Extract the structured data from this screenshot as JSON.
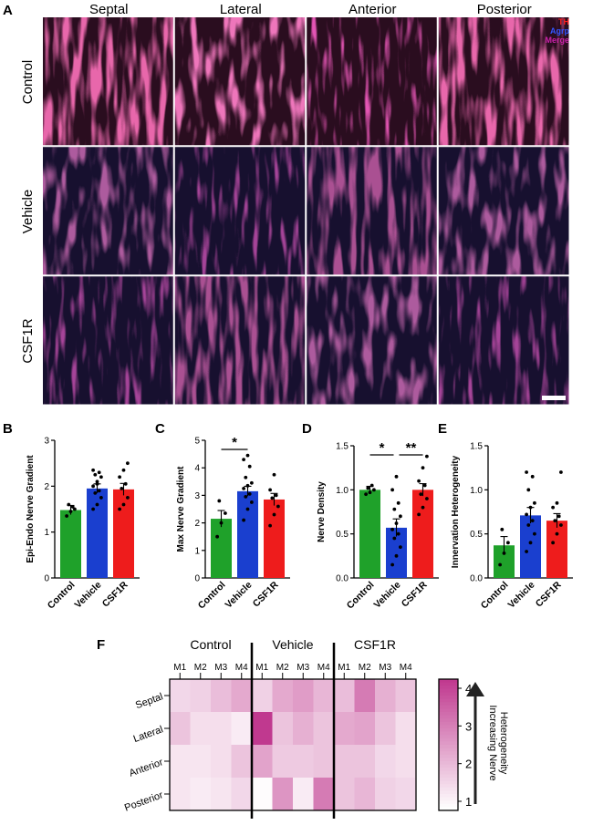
{
  "panel_letters": {
    "A": "A",
    "B": "B",
    "C": "C",
    "D": "D",
    "E": "E",
    "F": "F"
  },
  "panel_a": {
    "columns": [
      "Septal",
      "Lateral",
      "Anterior",
      "Posterior"
    ],
    "rows": [
      "Control",
      "Vehicle",
      "CSF1R"
    ],
    "legend": [
      "TH",
      "Agrp",
      "Merge"
    ],
    "legend_colors": [
      "#ff2020",
      "#3355ff",
      "#cc22aa"
    ]
  },
  "colors": {
    "Control": "#1fa12a",
    "Vehicle": "#1a3fcf",
    "CSF1R": "#ee1c1c",
    "heat_low": "#ffffff",
    "heat_high": "#c0398f"
  },
  "chart_data": [
    {
      "type": "bar",
      "panel": "B",
      "categories": [
        "Control",
        "Vehicle",
        "CSF1R"
      ],
      "values": [
        1.48,
        1.95,
        1.93
      ],
      "errors": [
        0.1,
        0.1,
        0.13
      ],
      "points": [
        [
          1.35,
          1.45,
          1.5,
          1.6,
          1.55
        ],
        [
          1.5,
          1.6,
          1.75,
          1.85,
          1.9,
          2.0,
          2.1,
          2.2,
          2.25,
          2.3,
          2.35,
          2.05
        ],
        [
          1.5,
          1.6,
          1.75,
          1.95,
          2.05,
          2.2,
          2.35,
          2.5
        ]
      ],
      "ylabel": "Epi-Endo Nerve Gradient",
      "ylim": [
        0,
        3
      ],
      "yticks": [
        0,
        1,
        2,
        3
      ],
      "significance": []
    },
    {
      "type": "bar",
      "panel": "C",
      "categories": [
        "Control",
        "Vehicle",
        "CSF1R"
      ],
      "values": [
        2.15,
        3.15,
        2.85
      ],
      "errors": [
        0.3,
        0.18,
        0.22
      ],
      "points": [
        [
          1.5,
          2.0,
          2.35,
          2.8
        ],
        [
          2.1,
          2.5,
          2.75,
          2.95,
          3.05,
          3.25,
          3.35,
          3.45,
          3.65,
          4.05,
          4.3,
          4.45
        ],
        [
          1.9,
          2.3,
          2.6,
          2.9,
          3.0,
          3.2,
          3.75
        ]
      ],
      "ylabel": "Max Nerve Gradient",
      "ylim": [
        0,
        5
      ],
      "yticks": [
        0,
        1,
        2,
        3,
        4,
        5
      ],
      "significance": [
        {
          "from": 0,
          "to": 1,
          "label": "*"
        }
      ]
    },
    {
      "type": "bar",
      "panel": "D",
      "categories": [
        "Control",
        "Vehicle",
        "CSF1R"
      ],
      "values": [
        1.0,
        0.57,
        1.0
      ],
      "errors": [
        0.04,
        0.1,
        0.07
      ],
      "points": [
        [
          0.95,
          0.97,
          1.0,
          1.02,
          1.05
        ],
        [
          0.15,
          0.25,
          0.35,
          0.45,
          0.5,
          0.55,
          0.62,
          0.7,
          0.78,
          0.85,
          1.0,
          1.15
        ],
        [
          0.72,
          0.8,
          0.9,
          0.95,
          1.05,
          1.1,
          1.25,
          1.38
        ]
      ],
      "ylabel": "Nerve Density",
      "ylim": [
        0,
        1.5
      ],
      "yticks": [
        "0.0",
        "0.5",
        "1.0",
        "1.5"
      ],
      "significance": [
        {
          "from": 0,
          "to": 1,
          "label": "*"
        },
        {
          "from": 1,
          "to": 2,
          "label": "**"
        }
      ]
    },
    {
      "type": "bar",
      "panel": "E",
      "categories": [
        "Control",
        "Vehicle",
        "CSF1R"
      ],
      "values": [
        0.37,
        0.71,
        0.65
      ],
      "errors": [
        0.1,
        0.09,
        0.08
      ],
      "points": [
        [
          0.15,
          0.28,
          0.4,
          0.55
        ],
        [
          0.3,
          0.4,
          0.5,
          0.6,
          0.65,
          0.72,
          0.8,
          0.85,
          1.0,
          1.15,
          1.2
        ],
        [
          0.4,
          0.5,
          0.6,
          0.65,
          0.7,
          0.8,
          0.85,
          1.2
        ]
      ],
      "ylabel": "Innervation Heterogeneity",
      "ylim": [
        0,
        1.5
      ],
      "yticks": [
        "0.0",
        "0.5",
        "1.0",
        "1.5"
      ],
      "significance": []
    },
    {
      "type": "heatmap",
      "panel": "F",
      "groups": [
        "Control",
        "Vehicle",
        "CSF1R"
      ],
      "columns": [
        "M1",
        "M2",
        "M3",
        "M4",
        "M1",
        "M2",
        "M3",
        "M4",
        "M1",
        "M2",
        "M3",
        "M4"
      ],
      "rows": [
        "Septal",
        "Lateral",
        "Anterior",
        "Posterior"
      ],
      "values": [
        [
          1.6,
          1.7,
          2.0,
          2.3,
          1.7,
          2.3,
          2.5,
          2.1,
          2.0,
          3.0,
          2.2,
          1.9
        ],
        [
          1.9,
          1.5,
          1.5,
          1.3,
          4.0,
          1.9,
          2.2,
          1.9,
          2.3,
          2.4,
          1.9,
          1.5
        ],
        [
          1.4,
          1.4,
          1.5,
          1.9,
          2.4,
          1.8,
          1.8,
          1.9,
          1.9,
          1.9,
          1.6,
          1.5
        ],
        [
          1.4,
          1.3,
          1.4,
          1.6,
          1.05,
          2.6,
          1.3,
          3.0,
          1.9,
          2.1,
          1.7,
          1.6
        ]
      ],
      "colorbar_ticks": [
        1,
        2,
        3,
        4
      ],
      "colorbar_label": "Increasing Nerve\nHeterogeneity"
    }
  ]
}
